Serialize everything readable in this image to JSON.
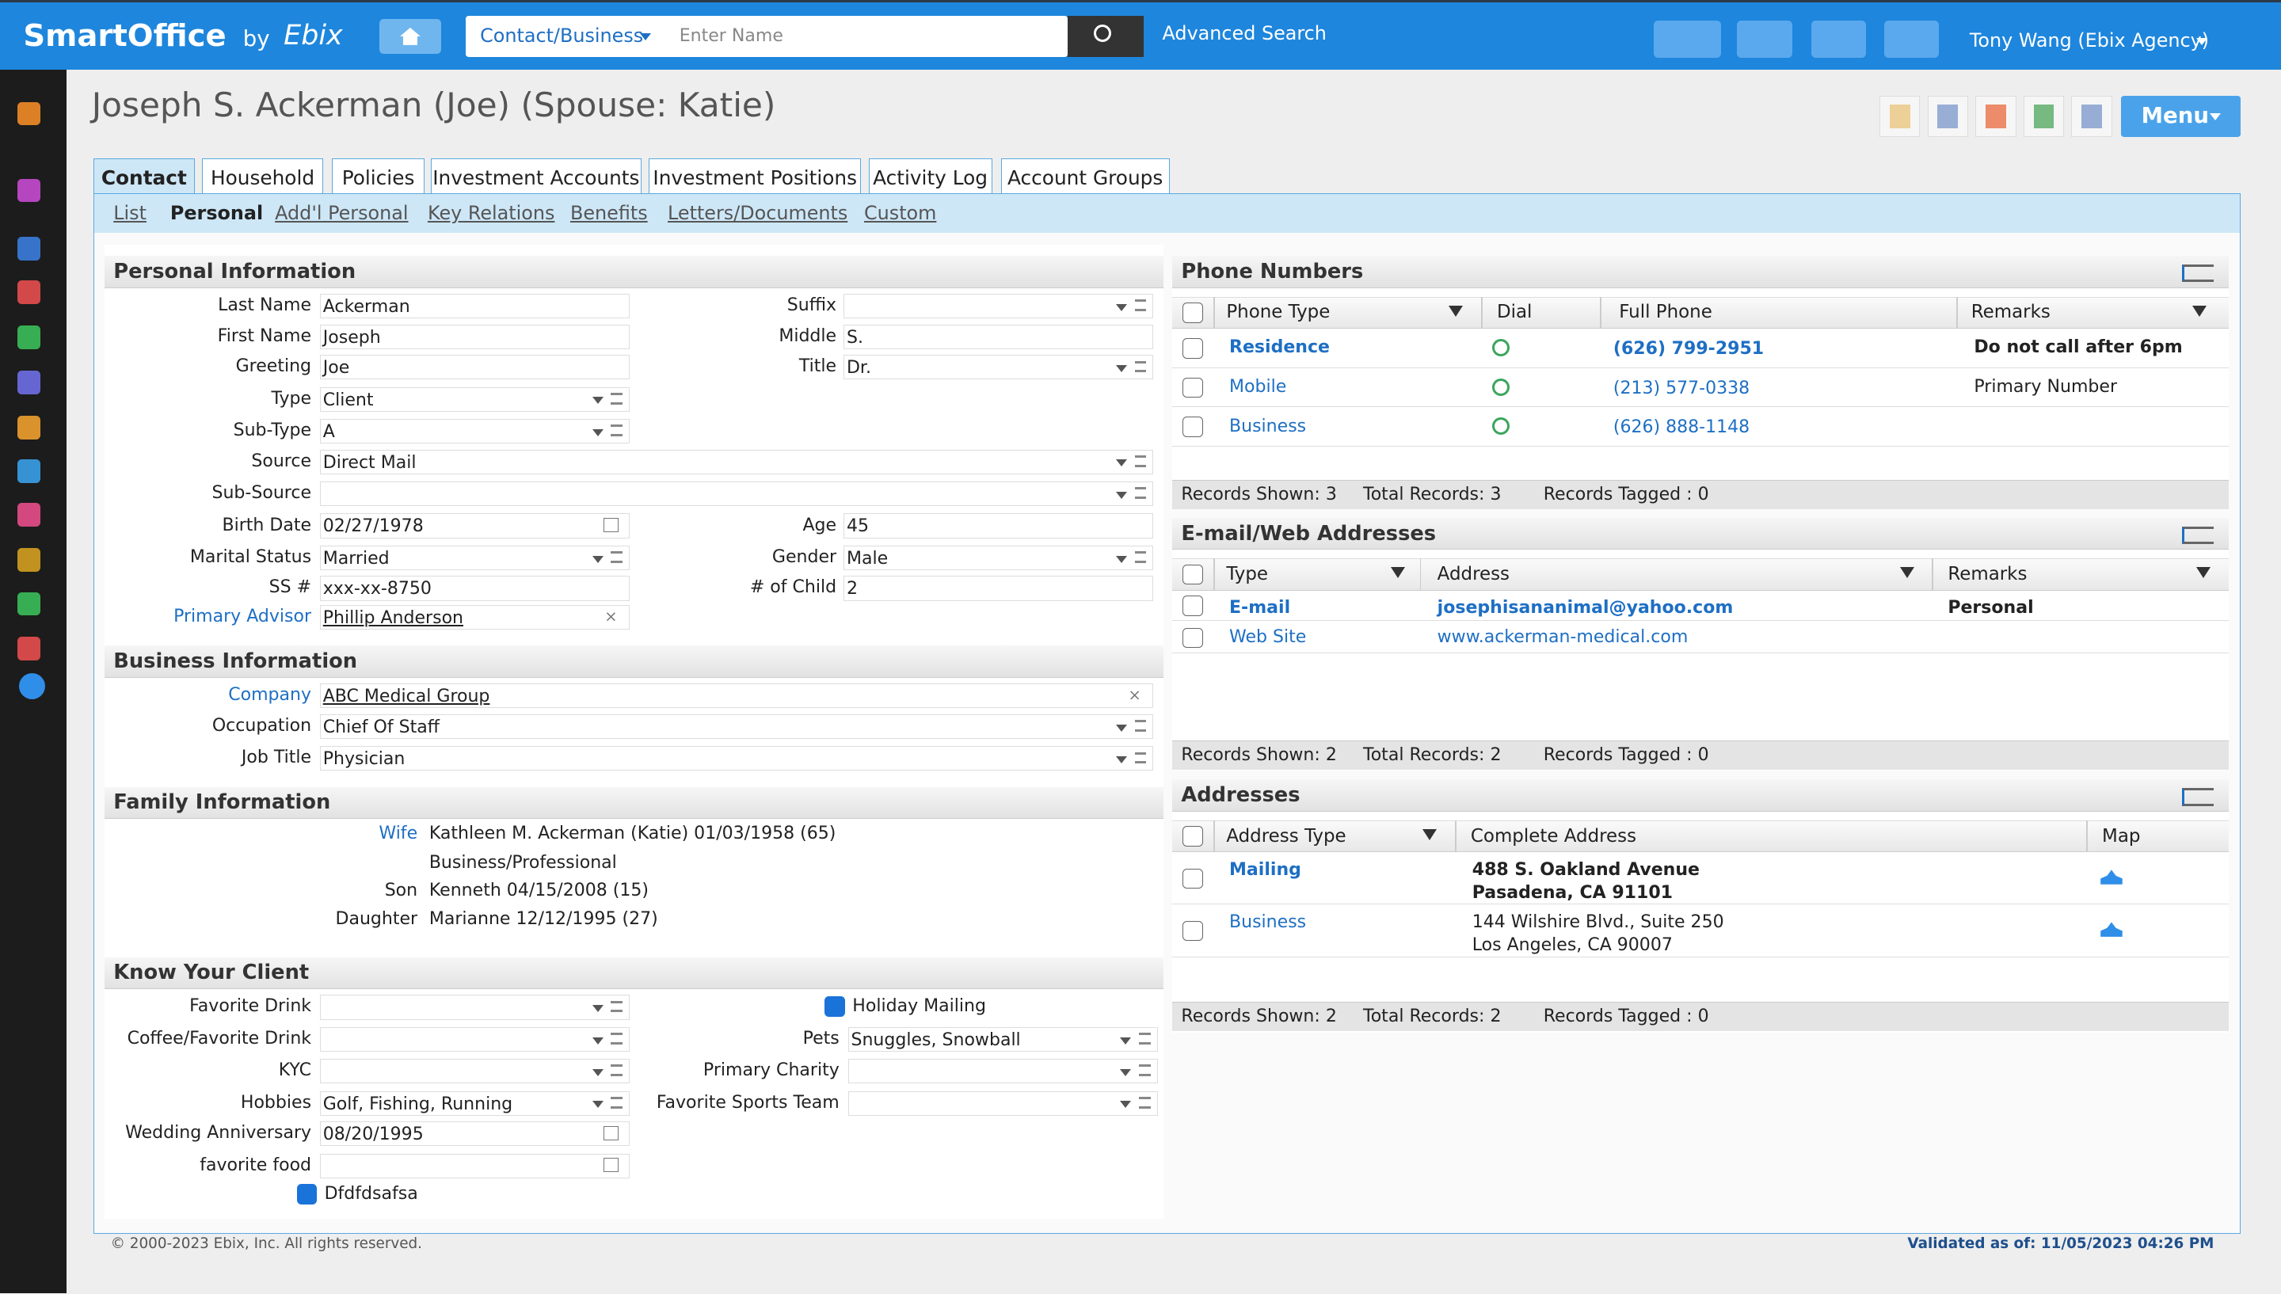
{
  "header": {
    "brand": "SmartOffice",
    "by": "by",
    "brand2": "Ebix",
    "search_type": "Contact/Business",
    "search_placeholder": "Enter Name",
    "advanced": "Advanced Search",
    "user": "Tony Wang (Ebix Agency)"
  },
  "page": {
    "title": "Joseph S. Ackerman (Joe) (Spouse: Katie)",
    "menu": "Menu"
  },
  "tabs": [
    "Contact",
    "Household",
    "Policies",
    "Investment Accounts",
    "Investment Positions",
    "Activity Log",
    "Account Groups"
  ],
  "subtabs": [
    "List",
    "Personal",
    "Add'l Personal",
    "Key Relations",
    "Benefits",
    "Letters/Documents",
    "Custom"
  ],
  "personal": {
    "title": "Personal Information",
    "left": [
      {
        "label": "Last Name",
        "value": "Ackerman"
      },
      {
        "label": "First Name",
        "value": "Joseph"
      },
      {
        "label": "Greeting",
        "value": "Joe"
      },
      {
        "label": "Type",
        "value": "Client"
      },
      {
        "label": "Sub-Type",
        "value": "A"
      },
      {
        "label": "Source",
        "value": "Direct Mail"
      },
      {
        "label": "Sub-Source"
      },
      {
        "label": "Birth Date",
        "value": "02/27/1978"
      },
      {
        "label": "Marital Status",
        "value": "Married"
      },
      {
        "label": "SS #",
        "value": "xxx-xx-8750"
      },
      {
        "label": "Primary Advisor",
        "value": "Phillip Anderson"
      }
    ],
    "right": [
      {
        "label": "Suffix"
      },
      {
        "label": "Middle",
        "value": "S."
      },
      {
        "label": "Title",
        "value": "Dr."
      },
      {
        "label": "Age",
        "value": "45"
      },
      {
        "label": "Gender",
        "value": "Male"
      },
      {
        "label": "# of Child",
        "value": "2"
      }
    ]
  },
  "business": {
    "title": "Business Information",
    "fields": [
      {
        "label": "Company",
        "value": "ABC Medical Group"
      },
      {
        "label": "Occupation",
        "value": "Chief Of Staff"
      },
      {
        "label": "Job Title",
        "value": "Physician"
      }
    ]
  },
  "family": {
    "title": "Family Information",
    "members": [
      {
        "label": "Wife",
        "value": "Kathleen M. Ackerman  (Katie) 01/03/1958 (65)",
        "note": "Business/Professional"
      },
      {
        "label": "Son",
        "value": "Kenneth 04/15/2008 (15)"
      },
      {
        "label": "Daughter",
        "value": "Marianne 12/12/1995 (27)"
      }
    ]
  },
  "kyc": {
    "title": "Know Your Client",
    "left": [
      {
        "label": "Favorite Drink"
      },
      {
        "label": "Coffee/Favorite Drink"
      },
      {
        "label": "KYC"
      },
      {
        "label": "Hobbies",
        "value": "Golf, Fishing, Running"
      },
      {
        "label": "Wedding Anniversary",
        "value": "08/20/1995"
      },
      {
        "label": "favorite food"
      }
    ],
    "checkbox": "Dfdfdsafsa",
    "holiday": "Holiday Mailing",
    "right": [
      {
        "label": "Pets",
        "value": "Snuggles, Snowball"
      },
      {
        "label": "Primary Charity"
      },
      {
        "label": "Favorite Sports Team"
      }
    ]
  },
  "phones": {
    "title": "Phone Numbers",
    "columns": [
      "Phone Type",
      "Dial",
      "Full Phone",
      "Remarks"
    ],
    "rows": [
      {
        "type": "Residence",
        "phone": "(626) 799-2951",
        "remarks": "Do not call after 6pm"
      },
      {
        "type": "Mobile",
        "phone": "(213) 577-0338",
        "remarks": "Primary Number"
      },
      {
        "type": "Business",
        "phone": "(626) 888-1148"
      }
    ],
    "footer": [
      "Records Shown: 3",
      "Total Records: 3",
      "Records Tagged : 0"
    ]
  },
  "emails": {
    "title": "E-mail/Web Addresses",
    "columns": [
      "Type",
      "Address",
      "Remarks"
    ],
    "rows": [
      {
        "type": "E-mail",
        "address": "josephisananimal@yahoo.com",
        "remarks": "Personal"
      },
      {
        "type": "Web Site",
        "address": "www.ackerman-medical.com"
      }
    ],
    "footer": [
      "Records Shown: 2",
      "Total Records: 2",
      "Records Tagged : 0"
    ]
  },
  "addresses": {
    "title": "Addresses",
    "columns": [
      "Address Type",
      "Complete Address",
      "Map"
    ],
    "rows": [
      {
        "type": "Mailing",
        "line1": "488 S. Oakland Avenue",
        "line2": "Pasadena, CA 91101"
      },
      {
        "type": "Business",
        "line1": "144 Wilshire Blvd., Suite 250",
        "line2": "Los Angeles, CA 90007"
      }
    ],
    "footer": [
      "Records Shown: 2",
      "Total Records: 2",
      "Records Tagged : 0"
    ]
  },
  "footer": {
    "copyright": "© 2000-2023 Ebix, Inc. All rights reserved.",
    "validated": "Validated as of: 11/05/2023 04:26 PM"
  }
}
